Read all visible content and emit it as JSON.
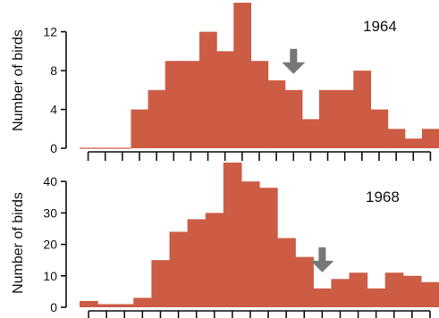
{
  "chart_data": [
    {
      "type": "bar",
      "label": "1964",
      "ylabel": "Number of birds",
      "ylim": [
        0,
        15
      ],
      "yticks": [
        0,
        4,
        8,
        12
      ],
      "values": [
        0,
        0,
        0,
        4,
        6,
        9,
        9,
        12,
        10,
        15,
        9,
        7,
        6,
        3,
        6,
        6,
        8,
        4,
        2,
        1,
        2
      ],
      "arrow_at_bin": 12,
      "bar_color": "#cd5c45",
      "arrow_color": "#777777"
    },
    {
      "type": "bar",
      "label": "1968",
      "ylabel": "Number of birds",
      "ylim": [
        0,
        46
      ],
      "yticks": [
        0,
        10,
        20,
        30,
        40
      ],
      "values": [
        2,
        1,
        1,
        3,
        15,
        24,
        28,
        30,
        46,
        40,
        38,
        22,
        16,
        6,
        9,
        11,
        6,
        11,
        10,
        8
      ],
      "arrow_at_bin": 13,
      "bar_color": "#cd5c45",
      "arrow_color": "#777777"
    }
  ]
}
